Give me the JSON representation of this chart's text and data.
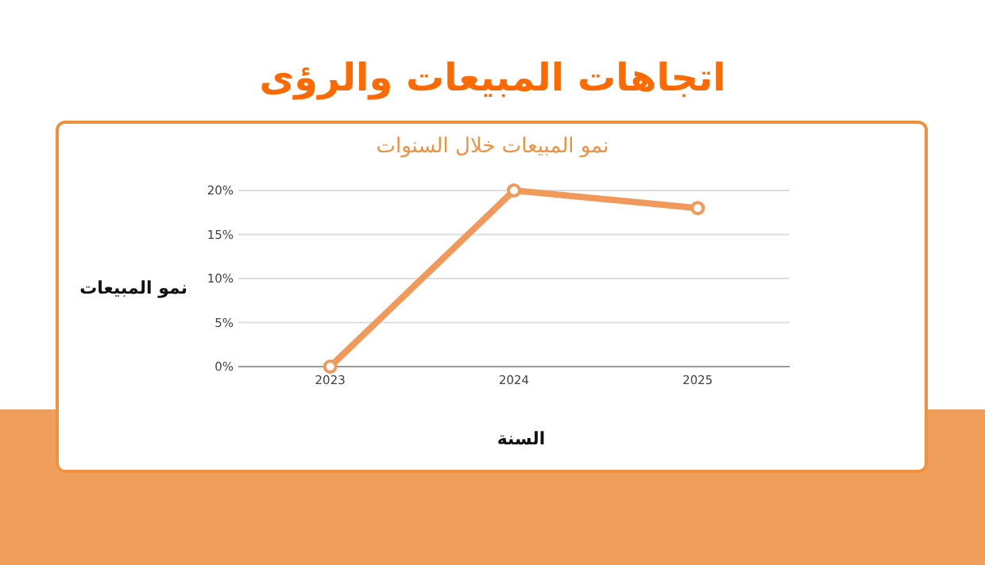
{
  "chart_data": {
    "type": "line",
    "title": "اتجاهات المبيعات والرؤى",
    "subtitle": "نمو المبيعات خلال السنوات",
    "xlabel": "السنة",
    "ylabel": "نمو المبيعات",
    "categories": [
      "2023",
      "2024",
      "2025"
    ],
    "series": [
      {
        "color": "#f0995a",
        "values": [
          0,
          20,
          18
        ]
      }
    ],
    "ylim": [
      0,
      20
    ],
    "yticks": [
      {
        "value": 0,
        "label": "0%"
      },
      {
        "value": 5,
        "label": "5%"
      },
      {
        "value": 10,
        "label": "10%"
      },
      {
        "value": 15,
        "label": "15%"
      },
      {
        "value": 20,
        "label": "20%"
      }
    ],
    "grid": "y",
    "marker": "circle",
    "line_style": "solid"
  }
}
